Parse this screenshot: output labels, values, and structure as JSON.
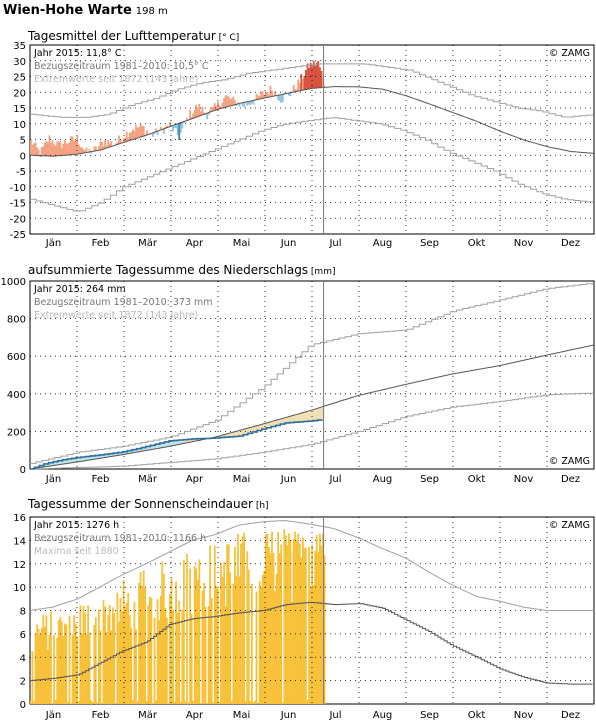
{
  "station": {
    "name": "Wien-Hohe Warte",
    "elevation": "198 m"
  },
  "months": [
    "Jän",
    "Feb",
    "Mär",
    "Apr",
    "Mai",
    "Jun",
    "Jul",
    "Aug",
    "Sep",
    "Okt",
    "Nov",
    "Dez"
  ],
  "watermark": "© ZAMG",
  "colors": {
    "warm_anomaly": "#f4a382",
    "warm_record": "#d9533f",
    "cold_anomaly": "#8ec8df",
    "cold_record": "#3f7fb7",
    "precip_deficit": "#f1dfb5",
    "precip_surplus": "#bfe3e7",
    "precip_2015": "#2f6f9e",
    "sun": "#f8c13a",
    "sun_edge": "#e9a51a",
    "climate_line": "#555555",
    "extreme_line": "#a0a0a0"
  },
  "chart_data": [
    {
      "type": "line",
      "title": "Tagesmittel der Lufttemperatur",
      "unit": "[° C]",
      "legend": [
        "Jahr 2015: 11,8° C",
        "Bezugszeitraum 1981–2010: 10,5° C",
        "Extremwerte seit 1872 (143 Jahre)"
      ],
      "ylim": [
        -25,
        35
      ],
      "yticks": [
        35,
        30,
        25,
        20,
        15,
        10,
        5,
        0,
        -5,
        -10,
        -15,
        -20,
        -25
      ],
      "today_doy": 190,
      "climate_mean": [
        [
          0,
          0.0
        ],
        [
          15,
          -0.3
        ],
        [
          30,
          0.3
        ],
        [
          46,
          1.7
        ],
        [
          60,
          4.0
        ],
        [
          75,
          6.3
        ],
        [
          91,
          9.2
        ],
        [
          106,
          11.8
        ],
        [
          121,
          14.5
        ],
        [
          136,
          16.5
        ],
        [
          152,
          18.2
        ],
        [
          167,
          19.7
        ],
        [
          182,
          21.2
        ],
        [
          197,
          21.8
        ],
        [
          213,
          21.7
        ],
        [
          228,
          21.0
        ],
        [
          244,
          18.8
        ],
        [
          259,
          16.2
        ],
        [
          274,
          13.5
        ],
        [
          289,
          10.8
        ],
        [
          305,
          7.5
        ],
        [
          320,
          4.8
        ],
        [
          335,
          2.7
        ],
        [
          350,
          1.2
        ],
        [
          365,
          0.6
        ]
      ],
      "record_max": [
        [
          0,
          13
        ],
        [
          20,
          12
        ],
        [
          35,
          12
        ],
        [
          50,
          13
        ],
        [
          65,
          16
        ],
        [
          80,
          18
        ],
        [
          95,
          21
        ],
        [
          110,
          23
        ],
        [
          125,
          24
        ],
        [
          140,
          26
        ],
        [
          155,
          27
        ],
        [
          170,
          28
        ],
        [
          185,
          29
        ],
        [
          200,
          29
        ],
        [
          215,
          29
        ],
        [
          230,
          28
        ],
        [
          245,
          27
        ],
        [
          255,
          25
        ],
        [
          270,
          22
        ],
        [
          285,
          19
        ],
        [
          300,
          17
        ],
        [
          315,
          15
        ],
        [
          330,
          14
        ],
        [
          345,
          12
        ],
        [
          365,
          13
        ]
      ],
      "record_min": [
        [
          0,
          -14
        ],
        [
          15,
          -16
        ],
        [
          30,
          -18
        ],
        [
          45,
          -15
        ],
        [
          60,
          -10
        ],
        [
          75,
          -7
        ],
        [
          90,
          -4
        ],
        [
          105,
          -1
        ],
        [
          120,
          2
        ],
        [
          135,
          5
        ],
        [
          150,
          8
        ],
        [
          165,
          10
        ],
        [
          180,
          11
        ],
        [
          195,
          12
        ],
        [
          210,
          11
        ],
        [
          225,
          10
        ],
        [
          240,
          8
        ],
        [
          255,
          5
        ],
        [
          270,
          1
        ],
        [
          285,
          -2
        ],
        [
          300,
          -5
        ],
        [
          315,
          -9
        ],
        [
          330,
          -12
        ],
        [
          345,
          -14
        ],
        [
          365,
          -15
        ]
      ],
      "year_2015": [
        [
          0,
          4.6
        ],
        [
          6,
          0.5
        ],
        [
          12,
          5.4
        ],
        [
          18,
          3.1
        ],
        [
          24,
          4.4
        ],
        [
          30,
          5.1
        ],
        [
          36,
          0.9
        ],
        [
          42,
          1.8
        ],
        [
          48,
          4.6
        ],
        [
          54,
          3.5
        ],
        [
          60,
          6.2
        ],
        [
          66,
          8.5
        ],
        [
          72,
          9.0
        ],
        [
          78,
          6.3
        ],
        [
          84,
          7.8
        ],
        [
          90,
          9.5
        ],
        [
          96,
          5.8
        ],
        [
          102,
          12.4
        ],
        [
          108,
          15.6
        ],
        [
          114,
          13.0
        ],
        [
          120,
          15.3
        ],
        [
          126,
          18.6
        ],
        [
          132,
          17.0
        ],
        [
          138,
          15.7
        ],
        [
          144,
          17.3
        ],
        [
          150,
          19.4
        ],
        [
          156,
          21.0
        ],
        [
          162,
          17.8
        ],
        [
          168,
          19.7
        ],
        [
          174,
          23.4
        ],
        [
          180,
          28.5
        ],
        [
          186,
          29.5
        ],
        [
          190,
          22.8
        ]
      ]
    },
    {
      "type": "line",
      "title": "aufsummierte Tagessumme des Niederschlags",
      "unit": "[mm]",
      "legend": [
        "Jahr 2015: 264 mm",
        "Bezugszeitraum 1981–2010: 373 mm",
        "Extremwerte seit 1872 (143 Jahre)"
      ],
      "ylim": [
        0,
        1000
      ],
      "yticks": [
        1000,
        800,
        600,
        400,
        200,
        0
      ],
      "today_doy": 190,
      "climate_mean": [
        [
          0,
          0
        ],
        [
          31,
          38
        ],
        [
          59,
          75
        ],
        [
          90,
          120
        ],
        [
          120,
          170
        ],
        [
          151,
          240
        ],
        [
          181,
          310
        ],
        [
          212,
          390
        ],
        [
          243,
          450
        ],
        [
          273,
          505
        ],
        [
          304,
          550
        ],
        [
          334,
          605
        ],
        [
          365,
          660
        ]
      ],
      "record_max": [
        [
          0,
          30
        ],
        [
          31,
          90
        ],
        [
          59,
          120
        ],
        [
          90,
          170
        ],
        [
          120,
          260
        ],
        [
          151,
          440
        ],
        [
          181,
          660
        ],
        [
          212,
          720
        ],
        [
          243,
          740
        ],
        [
          273,
          840
        ],
        [
          304,
          900
        ],
        [
          334,
          960
        ],
        [
          365,
          990
        ]
      ],
      "record_min": [
        [
          0,
          0
        ],
        [
          31,
          8
        ],
        [
          59,
          15
        ],
        [
          90,
          35
        ],
        [
          120,
          55
        ],
        [
          151,
          90
        ],
        [
          181,
          130
        ],
        [
          212,
          200
        ],
        [
          243,
          280
        ],
        [
          273,
          330
        ],
        [
          304,
          360
        ],
        [
          334,
          395
        ],
        [
          365,
          405
        ]
      ],
      "year_2015": [
        [
          0,
          0
        ],
        [
          10,
          30
        ],
        [
          20,
          48
        ],
        [
          31,
          62
        ],
        [
          45,
          75
        ],
        [
          59,
          90
        ],
        [
          70,
          110
        ],
        [
          90,
          150
        ],
        [
          105,
          160
        ],
        [
          120,
          165
        ],
        [
          135,
          175
        ],
        [
          151,
          215
        ],
        [
          165,
          245
        ],
        [
          181,
          255
        ],
        [
          190,
          264
        ]
      ]
    },
    {
      "type": "bar",
      "title": "Tagessumme der Sonnenscheindauer",
      "unit": "[h]",
      "legend": [
        "Jahr 2015: 1276 h",
        "Bezugszeitraum 1981–2010: 1166 h",
        "Maxima seit 1880"
      ],
      "ylim": [
        0,
        16
      ],
      "yticks": [
        16,
        14,
        12,
        10,
        8,
        6,
        4,
        2,
        0
      ],
      "today_doy": 190,
      "climate_mean": [
        [
          0,
          2.0
        ],
        [
          15,
          2.2
        ],
        [
          31,
          2.5
        ],
        [
          45,
          3.5
        ],
        [
          59,
          4.5
        ],
        [
          75,
          5.3
        ],
        [
          90,
          6.8
        ],
        [
          105,
          7.3
        ],
        [
          120,
          7.5
        ],
        [
          135,
          7.8
        ],
        [
          151,
          8.0
        ],
        [
          165,
          8.5
        ],
        [
          181,
          8.7
        ],
        [
          197,
          8.5
        ],
        [
          213,
          8.6
        ],
        [
          228,
          8.2
        ],
        [
          243,
          7.2
        ],
        [
          258,
          6.2
        ],
        [
          273,
          5.0
        ],
        [
          289,
          4.0
        ],
        [
          304,
          3.0
        ],
        [
          319,
          2.3
        ],
        [
          334,
          1.8
        ],
        [
          350,
          1.7
        ],
        [
          365,
          1.7
        ]
      ],
      "record_max": [
        [
          0,
          8.0
        ],
        [
          15,
          8.3
        ],
        [
          31,
          9.0
        ],
        [
          45,
          10.0
        ],
        [
          59,
          11.0
        ],
        [
          75,
          12.0
        ],
        [
          90,
          13.0
        ],
        [
          105,
          14.0
        ],
        [
          120,
          14.5
        ],
        [
          135,
          15.3
        ],
        [
          151,
          15.6
        ],
        [
          165,
          15.7
        ],
        [
          181,
          15.4
        ],
        [
          197,
          15.0
        ],
        [
          213,
          14.2
        ],
        [
          228,
          13.3
        ],
        [
          243,
          12.5
        ],
        [
          258,
          11.3
        ],
        [
          273,
          10.2
        ],
        [
          289,
          9.2
        ],
        [
          304,
          8.8
        ],
        [
          319,
          8.3
        ],
        [
          334,
          8.0
        ],
        [
          350,
          8.0
        ],
        [
          365,
          8.0
        ]
      ],
      "sun_seed": 2015
    }
  ]
}
